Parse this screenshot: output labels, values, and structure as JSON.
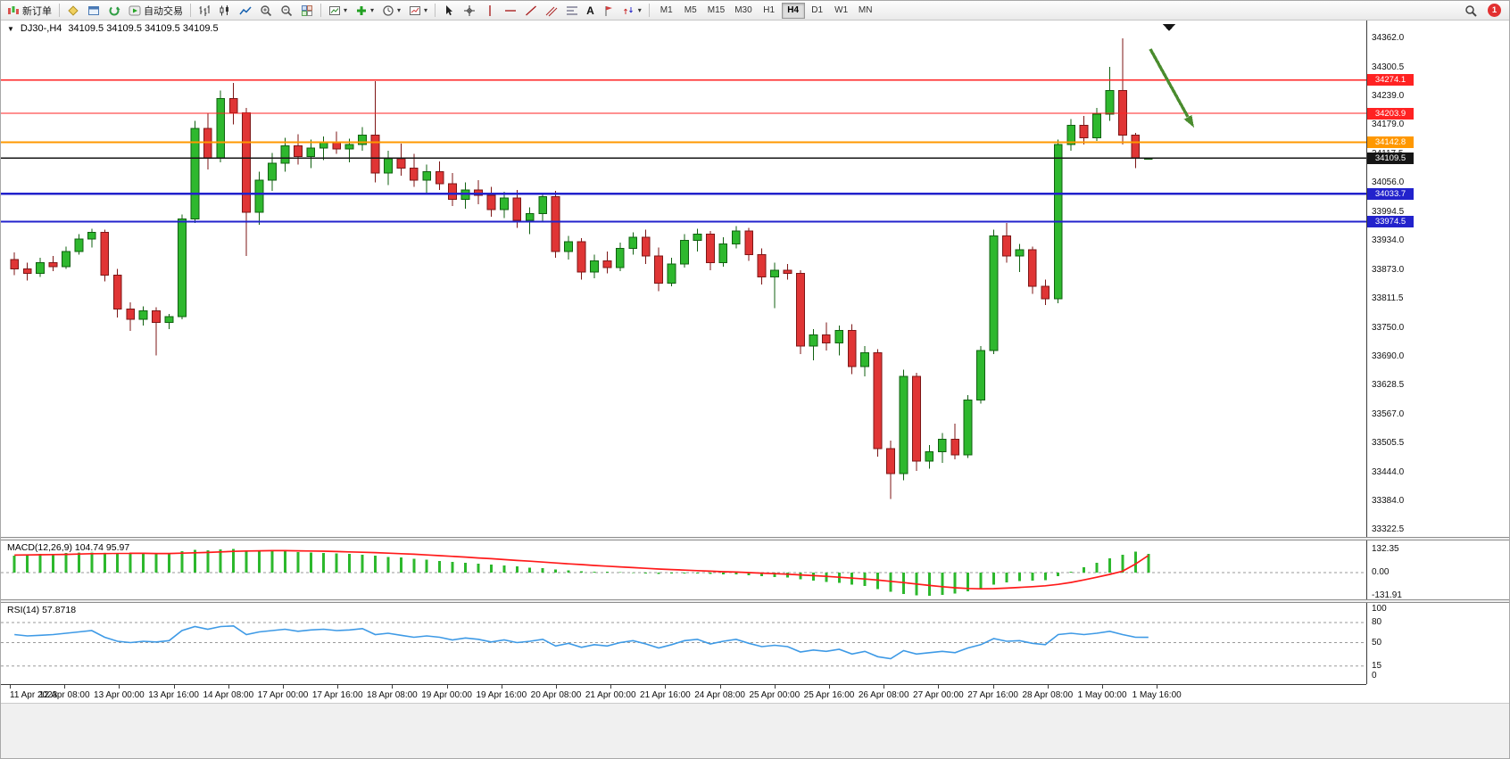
{
  "colors": {
    "bull": "#2eb82e",
    "bull_border": "#106010",
    "bear": "#e03535",
    "bear_border": "#7d1616",
    "macd_hist": "#2db82d",
    "macd_signal": "#ff1a1a",
    "rsi_line": "#3e9ae6",
    "arrow": "#4a8c2e"
  },
  "icons": {
    "dropdown_caret": "▾",
    "collapse_triangle": "▼"
  },
  "toolbar": {
    "new_order_label": "新订单",
    "auto_trading_label": "自动交易",
    "letter_tool": "A",
    "badge_count": "1",
    "timeframes": [
      "M1",
      "M5",
      "M15",
      "M30",
      "H1",
      "H4",
      "D1",
      "W1",
      "MN"
    ],
    "active_timeframe": "H4"
  },
  "chart": {
    "symbol_period": "DJ30-,H4",
    "ohlc": "34109.5 34109.5 34109.5 34109.5",
    "levels": [
      {
        "price": 34274.1,
        "label": "34274.1",
        "color": "#ff2222",
        "weight": 1.3
      },
      {
        "price": 34203.9,
        "label": "34203.9",
        "color": "#ff2222",
        "weight": 1.3
      },
      {
        "price": 34142.8,
        "label": "34142.8",
        "color": "#ff9800",
        "weight": 2.2
      },
      {
        "price": 34109.5,
        "label": "34109.5",
        "color": "#151515",
        "weight": 1.4
      },
      {
        "price": 34033.7,
        "label": "34033.7",
        "color": "#2222cc",
        "weight": 2.2
      },
      {
        "price": 33974.5,
        "label": "33974.5",
        "color": "#2222cc",
        "weight": 2.2
      }
    ],
    "price_axis_ticks": [
      34362.0,
      34300.5,
      34239.0,
      34179.0,
      34117.5,
      34056.0,
      33994.5,
      33934.0,
      33873.0,
      33811.5,
      33750.0,
      33690.0,
      33628.5,
      33567.0,
      33505.5,
      33444.0,
      33384.0,
      33322.5
    ],
    "time_axis": [
      "11 Apr 2023",
      "12 Apr 08:00",
      "13 Apr 00:00",
      "13 Apr 16:00",
      "14 Apr 08:00",
      "17 Apr 00:00",
      "17 Apr 16:00",
      "18 Apr 08:00",
      "19 Apr 00:00",
      "19 Apr 16:00",
      "20 Apr 08:00",
      "21 Apr 00:00",
      "21 Apr 16:00",
      "24 Apr 08:00",
      "25 Apr 00:00",
      "25 Apr 16:00",
      "26 Apr 08:00",
      "27 Apr 00:00",
      "27 Apr 16:00",
      "28 Apr 08:00",
      "1 May 00:00",
      "1 May 16:00"
    ]
  },
  "macd_panel": {
    "label": "MACD(12,26,9) 104.74 95.97",
    "axis": [
      "132.35",
      "0.00",
      "-131.91"
    ]
  },
  "rsi_panel": {
    "label": "RSI(14) 57.8718",
    "axis": [
      "100",
      "80",
      "50",
      "15",
      "0"
    ]
  },
  "chart_data": {
    "type": "candlestick+indicators",
    "symbol": "DJ30-",
    "timeframe": "H4",
    "price_axis_range": [
      33322.5,
      34362.0
    ],
    "current_price": 34109.5,
    "hlines": [
      34274.1,
      34203.9,
      34142.8,
      34109.5,
      34033.7,
      33974.5
    ],
    "candles_ohlc": [
      [
        33895,
        33910,
        33862,
        33875
      ],
      [
        33875,
        33888,
        33850,
        33865
      ],
      [
        33865,
        33898,
        33858,
        33888
      ],
      [
        33888,
        33902,
        33870,
        33880
      ],
      [
        33880,
        33922,
        33875,
        33912
      ],
      [
        33912,
        33948,
        33905,
        33938
      ],
      [
        33938,
        33960,
        33920,
        33952
      ],
      [
        33952,
        33958,
        33848,
        33862
      ],
      [
        33862,
        33875,
        33772,
        33790
      ],
      [
        33790,
        33804,
        33744,
        33768
      ],
      [
        33768,
        33796,
        33755,
        33786
      ],
      [
        33786,
        33794,
        33692,
        33762
      ],
      [
        33762,
        33780,
        33748,
        33774
      ],
      [
        33774,
        33990,
        33768,
        33980
      ],
      [
        33980,
        34188,
        33972,
        34172
      ],
      [
        34172,
        34205,
        34085,
        34110
      ],
      [
        34110,
        34252,
        34100,
        34235
      ],
      [
        34235,
        34268,
        34180,
        34205
      ],
      [
        34205,
        34215,
        33902,
        33995
      ],
      [
        33995,
        34080,
        33968,
        34062
      ],
      [
        34062,
        34120,
        34040,
        34098
      ],
      [
        34098,
        34152,
        34080,
        34135
      ],
      [
        34135,
        34160,
        34095,
        34112
      ],
      [
        34112,
        34148,
        34088,
        34130
      ],
      [
        34130,
        34155,
        34105,
        34142
      ],
      [
        34142,
        34165,
        34118,
        34128
      ],
      [
        34128,
        34150,
        34100,
        34138
      ],
      [
        34138,
        34175,
        34125,
        34158
      ],
      [
        34158,
        34272,
        34058,
        34078
      ],
      [
        34078,
        34125,
        34052,
        34108
      ],
      [
        34108,
        34140,
        34072,
        34088
      ],
      [
        34088,
        34118,
        34048,
        34062
      ],
      [
        34062,
        34095,
        34035,
        34080
      ],
      [
        34080,
        34102,
        34042,
        34055
      ],
      [
        34055,
        34078,
        34008,
        34022
      ],
      [
        34022,
        34058,
        34002,
        34042
      ],
      [
        34042,
        34062,
        34012,
        34030
      ],
      [
        34030,
        34048,
        33985,
        34000
      ],
      [
        34000,
        34038,
        33982,
        34025
      ],
      [
        34025,
        34042,
        33962,
        33978
      ],
      [
        33978,
        34005,
        33948,
        33992
      ],
      [
        33992,
        34035,
        33975,
        34028
      ],
      [
        34028,
        34040,
        33898,
        33912
      ],
      [
        33912,
        33945,
        33895,
        33932
      ],
      [
        33932,
        33940,
        33852,
        33868
      ],
      [
        33868,
        33905,
        33855,
        33892
      ],
      [
        33892,
        33912,
        33865,
        33878
      ],
      [
        33878,
        33930,
        33870,
        33918
      ],
      [
        33918,
        33952,
        33905,
        33942
      ],
      [
        33942,
        33958,
        33885,
        33902
      ],
      [
        33902,
        33920,
        33828,
        33845
      ],
      [
        33845,
        33898,
        33838,
        33885
      ],
      [
        33885,
        33948,
        33878,
        33935
      ],
      [
        33935,
        33960,
        33912,
        33948
      ],
      [
        33948,
        33955,
        33872,
        33888
      ],
      [
        33888,
        33942,
        33880,
        33928
      ],
      [
        33928,
        33965,
        33918,
        33955
      ],
      [
        33955,
        33962,
        33892,
        33905
      ],
      [
        33905,
        33918,
        33842,
        33858
      ],
      [
        33858,
        33888,
        33792,
        33872
      ],
      [
        33872,
        33885,
        33852,
        33865
      ],
      [
        33865,
        33872,
        33695,
        33712
      ],
      [
        33712,
        33748,
        33682,
        33735
      ],
      [
        33735,
        33762,
        33702,
        33718
      ],
      [
        33718,
        33755,
        33692,
        33745
      ],
      [
        33745,
        33758,
        33652,
        33668
      ],
      [
        33668,
        33712,
        33648,
        33698
      ],
      [
        33698,
        33705,
        33478,
        33495
      ],
      [
        33495,
        33512,
        33388,
        33442
      ],
      [
        33442,
        33662,
        33428,
        33648
      ],
      [
        33648,
        33655,
        33448,
        33468
      ],
      [
        33468,
        33502,
        33452,
        33488
      ],
      [
        33488,
        33528,
        33465,
        33515
      ],
      [
        33515,
        33548,
        33472,
        33482
      ],
      [
        33482,
        33608,
        33475,
        33598
      ],
      [
        33598,
        33712,
        33590,
        33702
      ],
      [
        33702,
        33958,
        33695,
        33945
      ],
      [
        33945,
        33972,
        33888,
        33902
      ],
      [
        33902,
        33928,
        33868,
        33915
      ],
      [
        33915,
        33922,
        33822,
        33838
      ],
      [
        33838,
        33852,
        33798,
        33812
      ],
      [
        33812,
        34148,
        33802,
        34138
      ],
      [
        34138,
        34192,
        34125,
        34178
      ],
      [
        34178,
        34198,
        34138,
        34152
      ],
      [
        34152,
        34215,
        34145,
        34202
      ],
      [
        34202,
        34302,
        34188,
        34252
      ],
      [
        34252,
        34362,
        34138,
        34158
      ],
      [
        34158,
        34162,
        34088,
        34109.5
      ],
      [
        34109.5,
        34109.5,
        34109.5,
        34109.5
      ]
    ],
    "macd": {
      "range": [
        -131.91,
        132.35
      ],
      "current_main": 104.74,
      "current_signal": 95.97,
      "histogram": [
        96,
        100,
        104,
        106,
        110,
        114,
        118,
        112,
        108,
        104,
        106,
        102,
        108,
        120,
        128,
        124,
        130,
        132.35,
        126,
        122,
        125,
        120,
        116,
        112,
        110,
        108,
        104,
        100,
        95,
        88,
        84,
        78,
        72,
        66,
        60,
        56,
        50,
        44,
        40,
        34,
        28,
        26,
        18,
        12,
        8,
        6,
        4,
        2,
        -2,
        -4,
        -8,
        -6,
        -4,
        -5,
        -8,
        -10,
        -10,
        -14,
        -20,
        -24,
        -28,
        -38,
        -45,
        -52,
        -58,
        -68,
        -76,
        -92,
        -108,
        -120,
        -128,
        -130,
        -126,
        -118,
        -105,
        -88,
        -68,
        -55,
        -48,
        -45,
        -42,
        -20,
        5,
        30,
        55,
        80,
        100,
        118,
        104.74
      ],
      "signal": [
        98,
        99,
        100,
        101,
        102,
        104,
        106,
        107,
        108,
        108,
        108,
        107,
        107,
        109,
        111,
        113,
        116,
        119,
        121,
        122,
        123,
        123,
        122,
        121,
        120,
        118,
        116,
        114,
        112,
        109,
        106,
        103,
        99,
        95,
        91,
        87,
        82,
        78,
        73,
        68,
        64,
        59,
        54,
        49,
        45,
        40,
        36,
        32,
        28,
        24,
        20,
        17,
        14,
        11,
        8,
        5,
        3,
        0,
        -3,
        -6,
        -9,
        -13,
        -17,
        -21,
        -26,
        -31,
        -36,
        -42,
        -49,
        -56,
        -64,
        -72,
        -79,
        -85,
        -89,
        -91,
        -90,
        -87,
        -83,
        -79,
        -74,
        -66,
        -55,
        -41,
        -26,
        -10,
        8,
        48,
        95.97
      ]
    },
    "rsi": {
      "levels": [
        80,
        50,
        15
      ],
      "current": 57.8718,
      "values": [
        62,
        60,
        61,
        62,
        64,
        66,
        68,
        58,
        52,
        50,
        52,
        51,
        53,
        68,
        74,
        70,
        74,
        75,
        62,
        66,
        68,
        70,
        67,
        69,
        70,
        68,
        69,
        71,
        62,
        64,
        61,
        58,
        60,
        58,
        54,
        57,
        55,
        51,
        54,
        50,
        52,
        55,
        45,
        49,
        43,
        47,
        45,
        50,
        53,
        48,
        42,
        47,
        53,
        55,
        48,
        52,
        55,
        49,
        44,
        46,
        44,
        36,
        39,
        37,
        40,
        33,
        37,
        29,
        26,
        38,
        33,
        35,
        37,
        35,
        42,
        47,
        56,
        52,
        53,
        49,
        47,
        62,
        64,
        62,
        64,
        67,
        62,
        58,
        57.87
      ]
    }
  }
}
